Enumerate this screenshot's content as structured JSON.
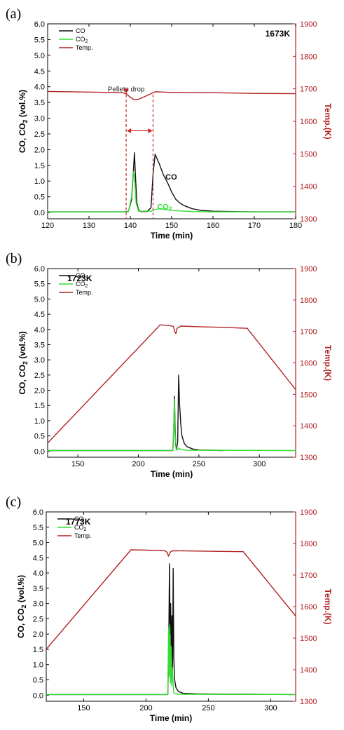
{
  "colors": {
    "co": "#111111",
    "co2": "#33dd33",
    "temp": "#b22222",
    "annotation": "#cc2222"
  },
  "chart_data": [
    {
      "type": "line",
      "panel_label": "(a)",
      "temperature_label": "1673K",
      "xlabel": "Time (min)",
      "ylabel_left": "CO, CO",
      "ylabel_left_sub": "2",
      "ylabel_left_tail": " (vol.%)",
      "ylabel_right": "Temp.(K)",
      "xlim": [
        120,
        180
      ],
      "xticks": [
        120,
        130,
        140,
        150,
        160,
        170,
        180
      ],
      "ylim": [
        -0.2,
        6.0
      ],
      "yticks": [
        0.0,
        0.5,
        1.0,
        1.5,
        2.0,
        2.5,
        3.0,
        3.5,
        4.0,
        4.5,
        5.0,
        5.5,
        6.0
      ],
      "y2lim": [
        1300,
        1900
      ],
      "y2ticks": [
        1300,
        1400,
        1500,
        1600,
        1700,
        1800,
        1900
      ],
      "legend": [
        {
          "name": "CO",
          "sub": "",
          "color": "#111111"
        },
        {
          "name": "CO",
          "sub": "2",
          "color": "#33dd33"
        },
        {
          "name": "Temp.",
          "sub": "",
          "color": "#b22222"
        }
      ],
      "series": [
        {
          "name": "Temp.",
          "axis": "right",
          "color": "#b22222",
          "x": [
            120,
            130,
            138,
            139,
            140,
            141,
            142,
            144,
            145.5,
            146,
            150,
            160,
            170,
            180
          ],
          "y": [
            1692,
            1690,
            1688,
            1685,
            1674,
            1666,
            1668,
            1679,
            1688,
            1691,
            1689,
            1688,
            1686,
            1685
          ]
        },
        {
          "name": "CO",
          "axis": "left",
          "color": "#111111",
          "x": [
            120,
            138,
            139.5,
            140.3,
            140.7,
            141.0,
            141.3,
            141.6,
            142,
            142.5,
            144,
            145,
            145.5,
            146,
            147,
            148,
            149,
            150,
            151,
            152,
            153,
            155,
            157,
            160,
            165,
            170,
            180
          ],
          "y": [
            0.02,
            0.02,
            0.03,
            0.4,
            1.2,
            1.9,
            1.0,
            0.3,
            0.08,
            0.03,
            0.03,
            0.15,
            1.2,
            1.85,
            1.55,
            1.2,
            0.95,
            0.65,
            0.42,
            0.3,
            0.22,
            0.12,
            0.07,
            0.04,
            0.03,
            0.02,
            0.02
          ]
        },
        {
          "name": "CO2",
          "axis": "left",
          "color": "#33dd33",
          "x": [
            120,
            139.5,
            140.3,
            140.7,
            141.0,
            141.4,
            142,
            145,
            146,
            147,
            148,
            150,
            152,
            155,
            160,
            180
          ],
          "y": [
            0.02,
            0.02,
            0.5,
            1.3,
            1.15,
            0.3,
            0.04,
            0.04,
            0.09,
            0.12,
            0.1,
            0.07,
            0.05,
            0.03,
            0.02,
            0.02
          ]
        }
      ],
      "annotations": [
        {
          "text": "Pellets drop",
          "x": 139,
          "y": 4.0,
          "role": "arrow-label"
        },
        {
          "text": "CO",
          "x": 148.5,
          "y": 1.05,
          "role": "curve-label",
          "color": "#111111"
        },
        {
          "text": "CO",
          "sub": "2",
          "x": 146.5,
          "y": 0.1,
          "role": "curve-label",
          "color": "#33dd33"
        }
      ],
      "marker_lines_x": [
        139,
        145.5
      ],
      "interval_arrow_y": 2.6
    },
    {
      "type": "line",
      "panel_label": "(b)",
      "temperature_label": "1723K",
      "xlabel": "Time (min)",
      "ylabel_left": "CO, CO",
      "ylabel_left_sub": "2",
      "ylabel_left_tail": " (vol.%)",
      "ylabel_right": "Temp.(K)",
      "xlim": [
        125,
        330
      ],
      "xticks": [
        150,
        200,
        250,
        300
      ],
      "ylim": [
        -0.2,
        6.0
      ],
      "yticks": [
        0.0,
        0.5,
        1.0,
        1.5,
        2.0,
        2.5,
        3.0,
        3.5,
        4.0,
        4.5,
        5.0,
        5.5,
        6.0
      ],
      "y2lim": [
        1300,
        1900
      ],
      "y2ticks": [
        1300,
        1400,
        1500,
        1600,
        1700,
        1800,
        1900
      ],
      "legend": [
        {
          "name": "CO",
          "sub": "",
          "color": "#111111"
        },
        {
          "name": "CO",
          "sub": "2",
          "color": "#33dd33"
        },
        {
          "name": "Temp.",
          "sub": "",
          "color": "#b22222"
        }
      ],
      "series": [
        {
          "name": "Temp.",
          "axis": "right",
          "color": "#b22222",
          "x": [
            125,
            218,
            225,
            229,
            230,
            231,
            232,
            235,
            250,
            270,
            290,
            330
          ],
          "y": [
            1345,
            1721,
            1719,
            1716,
            1700,
            1693,
            1710,
            1717,
            1715,
            1713,
            1710,
            1515
          ]
        },
        {
          "name": "CO",
          "axis": "left",
          "color": "#111111",
          "x": [
            125,
            228.5,
            229.2,
            229.8,
            230.3,
            230.8,
            231.5,
            232.5,
            233.3,
            234,
            235,
            236,
            238,
            240,
            245,
            250,
            260,
            270
          ],
          "y": [
            0.02,
            0.02,
            0.6,
            1.8,
            1.0,
            0.2,
            0.05,
            0.3,
            2.5,
            1.6,
            0.9,
            0.5,
            0.25,
            0.15,
            0.07,
            0.04,
            0.03,
            0.02
          ]
        },
        {
          "name": "CO2",
          "axis": "left",
          "color": "#33dd33",
          "x": [
            125,
            228.5,
            229.2,
            229.8,
            230.4,
            231.2,
            232.5,
            233.5,
            235,
            240,
            330
          ],
          "y": [
            0.02,
            0.02,
            0.8,
            1.7,
            0.6,
            0.05,
            0.04,
            0.1,
            0.05,
            0.03,
            0.02
          ]
        }
      ],
      "annotations": []
    },
    {
      "type": "line",
      "panel_label": "(c)",
      "temperature_label": "1773K",
      "xlabel": "Time (min)",
      "ylabel_left": "CO, CO",
      "ylabel_left_sub": "2",
      "ylabel_left_tail": " (vol.%)",
      "ylabel_right": "Temp.(K)",
      "xlim": [
        120,
        320
      ],
      "xticks": [
        150,
        200,
        250,
        300
      ],
      "ylim": [
        -0.2,
        6.0
      ],
      "yticks": [
        0.0,
        0.5,
        1.0,
        1.5,
        2.0,
        2.5,
        3.0,
        3.5,
        4.0,
        4.5,
        5.0,
        5.5,
        6.0
      ],
      "y2lim": [
        1300,
        1900
      ],
      "y2ticks": [
        1300,
        1400,
        1500,
        1600,
        1700,
        1800,
        1900
      ],
      "legend": [
        {
          "name": "CO",
          "sub": "",
          "color": "#111111"
        },
        {
          "name": "CO",
          "sub": "2",
          "color": "#33dd33"
        },
        {
          "name": "Temp.",
          "sub": "",
          "color": "#b22222"
        }
      ],
      "series": [
        {
          "name": "Temp.",
          "axis": "right",
          "color": "#b22222",
          "x": [
            120,
            188,
            200,
            215,
            217,
            218,
            219,
            220,
            222,
            240,
            260,
            278,
            320
          ],
          "y": [
            1465,
            1780,
            1779,
            1777,
            1772,
            1760,
            1768,
            1775,
            1777,
            1776,
            1775,
            1774,
            1570
          ]
        },
        {
          "name": "CO",
          "axis": "left",
          "color": "#111111",
          "x": [
            120,
            217.5,
            218.2,
            218.8,
            219.3,
            219.8,
            220.3,
            220.8,
            221.3,
            221.8,
            222.3,
            223,
            224,
            226,
            230,
            240,
            260,
            280,
            320
          ],
          "y": [
            0.02,
            0.02,
            1.5,
            4.3,
            2.0,
            3.0,
            1.2,
            2.6,
            0.8,
            4.15,
            1.2,
            0.5,
            0.25,
            0.12,
            0.06,
            0.04,
            0.03,
            0.03,
            0.02
          ]
        },
        {
          "name": "CO2",
          "axis": "left",
          "color": "#33dd33",
          "x": [
            120,
            217.5,
            218.1,
            218.6,
            219.1,
            219.6,
            220.1,
            220.6,
            221.1,
            221.6,
            222.2,
            223,
            226,
            320
          ],
          "y": [
            0.02,
            0.02,
            2.2,
            0.6,
            2.3,
            0.4,
            1.6,
            0.3,
            0.9,
            0.5,
            0.1,
            0.05,
            0.03,
            0.02
          ]
        }
      ],
      "annotations": []
    }
  ]
}
